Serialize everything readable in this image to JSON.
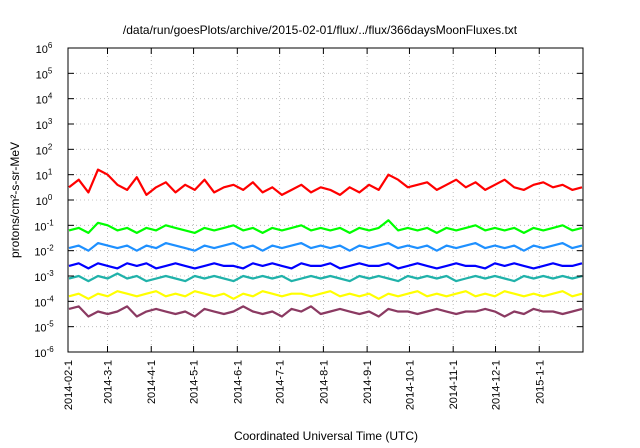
{
  "chart_data": {
    "type": "line",
    "title": "/data/run/goesPlots/archive/2015-02-01/flux/../flux/366daysMoonFluxes.txt",
    "xlabel": "Coordinated Universal Time (UTC)",
    "ylabel": "protons/cm²-s-sr-MeV",
    "yscale": "log",
    "ylim_exponent": [
      -6,
      6
    ],
    "y_tick_labels": [
      {
        "base": "10",
        "exp": "-6"
      },
      {
        "base": "10",
        "exp": "-5"
      },
      {
        "base": "10",
        "exp": "-4"
      },
      {
        "base": "10",
        "exp": "-3"
      },
      {
        "base": "10",
        "exp": "-2"
      },
      {
        "base": "10",
        "exp": "-1"
      },
      {
        "base": "10",
        "exp": "0"
      },
      {
        "base": "10",
        "exp": "1"
      },
      {
        "base": "10",
        "exp": "2"
      },
      {
        "base": "10",
        "exp": "3"
      },
      {
        "base": "10",
        "exp": "4"
      },
      {
        "base": "10",
        "exp": "5"
      },
      {
        "base": "10",
        "exp": "6"
      }
    ],
    "x_range": [
      "2014-02-01",
      "2015-02-01"
    ],
    "x_ticks": [
      "2014-02-1",
      "2014-3-1",
      "2014-4-1",
      "2014-5-1",
      "2014-6-1",
      "2014-7-1",
      "2014-8-1",
      "2014-9-1",
      "2014-10-1",
      "2014-11-1",
      "2014-12-1",
      "2015-1-1"
    ],
    "x_tick_dates": [
      "2014-02-01",
      "2014-03-01",
      "2014-04-01",
      "2014-05-01",
      "2014-06-01",
      "2014-07-01",
      "2014-08-01",
      "2014-09-01",
      "2014-10-01",
      "2014-11-01",
      "2014-12-01",
      "2015-01-01"
    ],
    "grid": true,
    "series": [
      {
        "color": "#8b3a62",
        "values_log10": [
          -4.3,
          -4.2,
          -4.6,
          -4.4,
          -4.5,
          -4.4,
          -4.2,
          -4.6,
          -4.4,
          -4.3,
          -4.4,
          -4.5,
          -4.4,
          -4.6,
          -4.3,
          -4.4,
          -4.5,
          -4.4,
          -4.2,
          -4.4,
          -4.5,
          -4.4,
          -4.6,
          -4.3,
          -4.4,
          -4.2,
          -4.5,
          -4.4,
          -4.3,
          -4.4,
          -4.5,
          -4.4,
          -4.6,
          -4.3,
          -4.4,
          -4.4,
          -4.5,
          -4.4,
          -4.3,
          -4.4,
          -4.5,
          -4.4,
          -4.4,
          -4.3,
          -4.4,
          -4.6,
          -4.4,
          -4.5,
          -4.3,
          -4.4,
          -4.4,
          -4.5,
          -4.4,
          -4.3
        ]
      },
      {
        "color": "#ffff00",
        "values_log10": [
          -3.8,
          -3.7,
          -3.9,
          -3.7,
          -3.8,
          -3.6,
          -3.7,
          -3.8,
          -3.7,
          -3.6,
          -3.8,
          -3.7,
          -3.8,
          -3.6,
          -3.7,
          -3.8,
          -3.7,
          -3.9,
          -3.7,
          -3.8,
          -3.6,
          -3.7,
          -3.8,
          -3.7,
          -3.7,
          -3.8,
          -3.7,
          -3.6,
          -3.8,
          -3.7,
          -3.8,
          -3.7,
          -3.9,
          -3.7,
          -3.8,
          -3.7,
          -3.6,
          -3.8,
          -3.7,
          -3.8,
          -3.7,
          -3.6,
          -3.8,
          -3.7,
          -3.8,
          -3.6,
          -3.7,
          -3.8,
          -3.7,
          -3.8,
          -3.7,
          -3.6,
          -3.8,
          -3.7
        ]
      },
      {
        "color": "#20b2aa",
        "values_log10": [
          -3.1,
          -3.0,
          -3.2,
          -3.0,
          -3.1,
          -2.9,
          -3.1,
          -3.0,
          -3.2,
          -3.1,
          -3.0,
          -3.1,
          -3.2,
          -3.0,
          -3.1,
          -3.0,
          -3.1,
          -3.2,
          -3.0,
          -3.1,
          -3.0,
          -3.1,
          -3.0,
          -3.2,
          -3.1,
          -3.0,
          -3.1,
          -3.0,
          -3.1,
          -3.2,
          -3.0,
          -3.1,
          -3.0,
          -3.1,
          -3.2,
          -3.0,
          -3.1,
          -3.0,
          -3.1,
          -3.0,
          -3.2,
          -3.1,
          -3.0,
          -3.1,
          -3.0,
          -3.1,
          -3.2,
          -3.0,
          -3.1,
          -3.0,
          -3.1,
          -3.0,
          -3.1,
          -3.0
        ]
      },
      {
        "color": "#0000ff",
        "values_log10": [
          -2.6,
          -2.5,
          -2.7,
          -2.5,
          -2.6,
          -2.7,
          -2.5,
          -2.6,
          -2.5,
          -2.7,
          -2.6,
          -2.5,
          -2.6,
          -2.7,
          -2.6,
          -2.5,
          -2.6,
          -2.6,
          -2.7,
          -2.5,
          -2.6,
          -2.5,
          -2.6,
          -2.7,
          -2.5,
          -2.6,
          -2.6,
          -2.5,
          -2.7,
          -2.6,
          -2.5,
          -2.6,
          -2.6,
          -2.5,
          -2.7,
          -2.6,
          -2.5,
          -2.6,
          -2.7,
          -2.6,
          -2.5,
          -2.6,
          -2.6,
          -2.7,
          -2.5,
          -2.6,
          -2.5,
          -2.6,
          -2.7,
          -2.6,
          -2.5,
          -2.6,
          -2.6,
          -2.5
        ]
      },
      {
        "color": "#1e90ff",
        "values_log10": [
          -1.9,
          -1.8,
          -2.0,
          -1.7,
          -1.8,
          -1.9,
          -1.8,
          -2.0,
          -1.8,
          -1.9,
          -1.7,
          -1.8,
          -1.9,
          -2.0,
          -1.8,
          -1.9,
          -1.8,
          -1.7,
          -1.9,
          -1.8,
          -2.0,
          -1.8,
          -1.9,
          -1.8,
          -1.7,
          -1.9,
          -1.8,
          -1.9,
          -1.8,
          -2.0,
          -1.8,
          -1.9,
          -1.8,
          -1.7,
          -1.9,
          -1.8,
          -1.9,
          -1.8,
          -2.0,
          -1.8,
          -1.9,
          -1.8,
          -1.7,
          -1.9,
          -1.8,
          -1.9,
          -1.8,
          -2.0,
          -1.8,
          -1.9,
          -1.8,
          -1.7,
          -1.9,
          -1.8
        ]
      },
      {
        "color": "#00ff00",
        "values_log10": [
          -1.2,
          -1.1,
          -1.3,
          -0.9,
          -1.0,
          -1.2,
          -1.1,
          -1.3,
          -1.1,
          -1.2,
          -1.0,
          -1.1,
          -1.2,
          -1.3,
          -1.1,
          -1.2,
          -1.1,
          -1.0,
          -1.2,
          -1.1,
          -1.3,
          -1.1,
          -1.2,
          -1.1,
          -1.0,
          -1.2,
          -1.1,
          -1.2,
          -1.1,
          -1.3,
          -1.1,
          -1.2,
          -1.1,
          -0.8,
          -1.2,
          -1.1,
          -1.2,
          -1.1,
          -1.3,
          -1.1,
          -1.2,
          -1.1,
          -1.0,
          -1.2,
          -1.1,
          -1.2,
          -1.1,
          -1.3,
          -1.1,
          -1.2,
          -1.1,
          -1.0,
          -1.2,
          -1.1
        ]
      },
      {
        "color": "#ff0000",
        "values_log10": [
          0.5,
          0.8,
          0.3,
          1.2,
          1.0,
          0.6,
          0.4,
          0.9,
          0.2,
          0.5,
          0.7,
          0.3,
          0.6,
          0.4,
          0.8,
          0.3,
          0.5,
          0.6,
          0.4,
          0.7,
          0.3,
          0.5,
          0.2,
          0.4,
          0.6,
          0.3,
          0.5,
          0.4,
          0.2,
          0.5,
          0.3,
          0.6,
          0.4,
          1.0,
          0.8,
          0.5,
          0.6,
          0.7,
          0.4,
          0.6,
          0.8,
          0.5,
          0.7,
          0.4,
          0.6,
          0.8,
          0.5,
          0.4,
          0.6,
          0.7,
          0.5,
          0.6,
          0.4,
          0.5
        ]
      }
    ]
  }
}
